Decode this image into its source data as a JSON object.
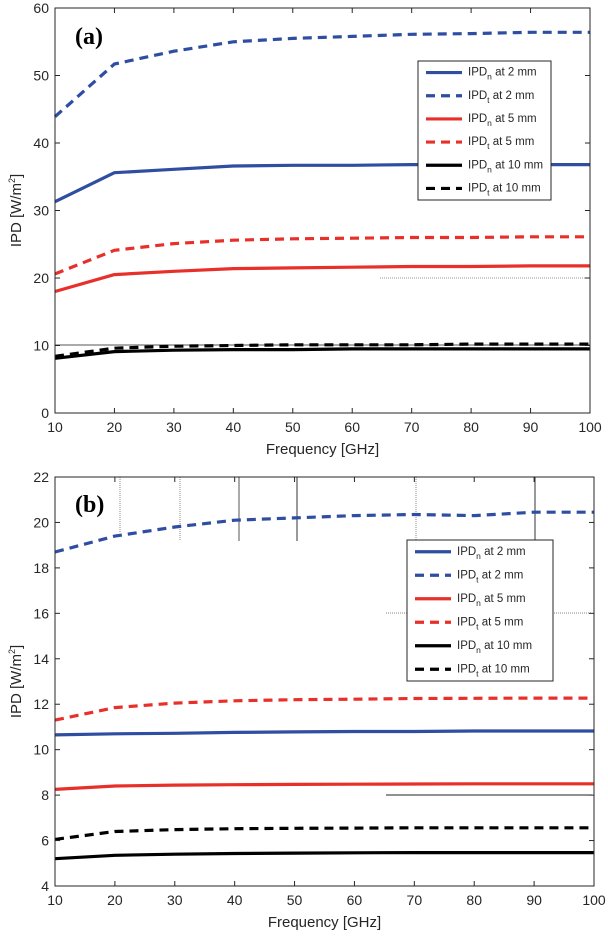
{
  "chart_data": [
    {
      "type": "line",
      "panel": "(a)",
      "xlabel": "Frequency [GHz]",
      "ylabel_main": "IPD [W/m",
      "ylabel_sup": "2",
      "ylabel_end": "]",
      "xlim": [
        10,
        100
      ],
      "ylim": [
        0,
        60
      ],
      "xticks": [
        10,
        20,
        30,
        40,
        50,
        60,
        70,
        80,
        90,
        100
      ],
      "yticks": [
        0,
        10,
        20,
        30,
        40,
        50,
        60
      ],
      "x": [
        10,
        20,
        30,
        40,
        50,
        60,
        70,
        80,
        90,
        100
      ],
      "legend_position": "top-right",
      "series": [
        {
          "name": "IPDn at 2 mm",
          "label_main": "IPD",
          "label_sub": "n",
          "label_tail": " at 2 mm",
          "color": "#2f4ea1",
          "dash": "solid",
          "values": [
            31.3,
            35.6,
            36.1,
            36.6,
            36.7,
            36.7,
            36.8,
            36.8,
            36.8,
            36.8
          ]
        },
        {
          "name": "IPDt at 2 mm",
          "label_main": "IPD",
          "label_sub": "t",
          "label_tail": " at 2 mm",
          "color": "#2f4ea1",
          "dash": "dashed",
          "values": [
            43.9,
            51.7,
            53.6,
            55.0,
            55.5,
            55.8,
            56.1,
            56.2,
            56.4,
            56.4
          ]
        },
        {
          "name": "IPDn at 5 mm",
          "label_main": "IPD",
          "label_sub": "n",
          "label_tail": " at 5 mm",
          "color": "#e8302a",
          "dash": "solid",
          "values": [
            18.0,
            20.5,
            21.0,
            21.4,
            21.5,
            21.6,
            21.7,
            21.7,
            21.8,
            21.8
          ]
        },
        {
          "name": "IPDt at 5 mm",
          "label_main": "IPD",
          "label_sub": "t",
          "label_tail": " at 5 mm",
          "color": "#e8302a",
          "dash": "dashed",
          "values": [
            20.6,
            24.1,
            25.1,
            25.6,
            25.8,
            25.9,
            26.0,
            26.0,
            26.1,
            26.1
          ]
        },
        {
          "name": "IPDn at 10 mm",
          "label_main": "IPD",
          "label_sub": "n",
          "label_tail": " at 10 mm",
          "color": "#000000",
          "dash": "solid",
          "values": [
            8.1,
            9.1,
            9.3,
            9.4,
            9.4,
            9.5,
            9.5,
            9.5,
            9.5,
            9.5
          ]
        },
        {
          "name": "IPDt at 10 mm",
          "label_main": "IPD",
          "label_sub": "t",
          "label_tail": " at 10 mm",
          "color": "#000000",
          "dash": "dashed",
          "values": [
            8.4,
            9.6,
            9.9,
            10.0,
            10.1,
            10.1,
            10.1,
            10.2,
            10.2,
            10.2
          ]
        }
      ]
    },
    {
      "type": "line",
      "panel": "(b)",
      "xlabel": "Frequency [GHz]",
      "ylabel_main": "IPD [W/m",
      "ylabel_sup": "2",
      "ylabel_end": "]",
      "xlim": [
        10,
        100
      ],
      "ylim": [
        4,
        22
      ],
      "xticks": [
        10,
        20,
        30,
        40,
        50,
        60,
        70,
        80,
        90,
        100
      ],
      "yticks": [
        4,
        6,
        8,
        10,
        12,
        14,
        16,
        18,
        20,
        22
      ],
      "x": [
        10,
        20,
        30,
        40,
        50,
        60,
        70,
        80,
        90,
        100
      ],
      "legend_position": "top-right",
      "series": [
        {
          "name": "IPDn at 2 mm",
          "label_main": "IPD",
          "label_sub": "n",
          "label_tail": " at 2 mm",
          "color": "#2f4ea1",
          "dash": "solid",
          "values": [
            10.65,
            10.7,
            10.72,
            10.76,
            10.78,
            10.8,
            10.8,
            10.82,
            10.82,
            10.82
          ]
        },
        {
          "name": "IPDt at 2 mm",
          "label_main": "IPD",
          "label_sub": "t",
          "label_tail": " at 2 mm",
          "color": "#2f4ea1",
          "dash": "dashed",
          "values": [
            18.7,
            19.4,
            19.8,
            20.1,
            20.2,
            20.3,
            20.35,
            20.3,
            20.45,
            20.45
          ]
        },
        {
          "name": "IPDn at 5 mm",
          "label_main": "IPD",
          "label_sub": "n",
          "label_tail": " at 5 mm",
          "color": "#e8302a",
          "dash": "solid",
          "values": [
            8.25,
            8.4,
            8.44,
            8.46,
            8.47,
            8.48,
            8.49,
            8.5,
            8.5,
            8.5
          ]
        },
        {
          "name": "IPDt at 5 mm",
          "label_main": "IPD",
          "label_sub": "t",
          "label_tail": " at 5 mm",
          "color": "#e8302a",
          "dash": "dashed",
          "values": [
            11.3,
            11.85,
            12.05,
            12.15,
            12.2,
            12.22,
            12.25,
            12.26,
            12.27,
            12.27
          ]
        },
        {
          "name": "IPDn at 10 mm",
          "label_main": "IPD",
          "label_sub": "n",
          "label_tail": " at 10 mm",
          "color": "#000000",
          "dash": "solid",
          "values": [
            5.2,
            5.35,
            5.4,
            5.43,
            5.45,
            5.46,
            5.47,
            5.47,
            5.47,
            5.47
          ]
        },
        {
          "name": "IPDt at 10 mm",
          "label_main": "IPD",
          "label_sub": "t",
          "label_tail": " at 10 mm",
          "color": "#000000",
          "dash": "dashed",
          "values": [
            6.05,
            6.4,
            6.48,
            6.52,
            6.54,
            6.55,
            6.56,
            6.56,
            6.56,
            6.56
          ]
        }
      ]
    }
  ]
}
